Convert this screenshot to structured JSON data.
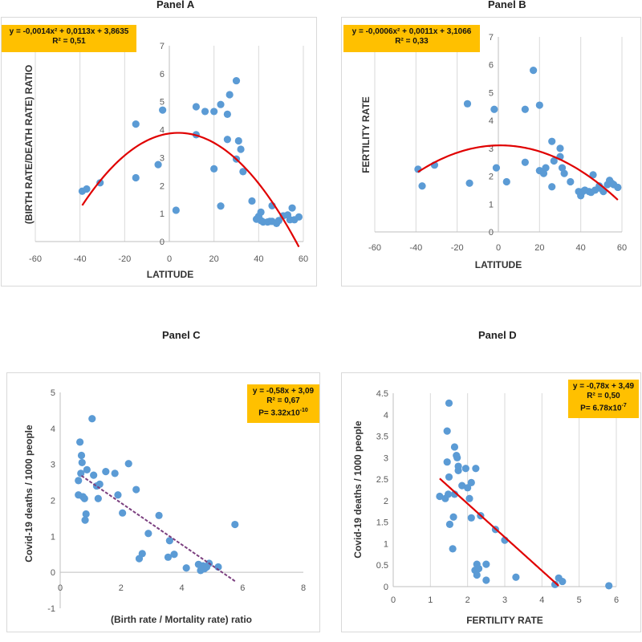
{
  "colors": {
    "point": "#5b9bd5",
    "fit": "#e00000",
    "fit_dashed": "#7b3f7f",
    "equation_box": "#ffc000",
    "grid": "#d9d9d9"
  },
  "panels": {
    "A": {
      "title": "Panel A",
      "equation": "y = -0,0014x² + 0,0113x + 3,8635",
      "r2": "R² = 0,51",
      "xlabel": "LATITUDE",
      "ylabel": "(BIRTH RATE/DEATH RATE) RATIO"
    },
    "B": {
      "title": "Panel B",
      "equation": "y = -0,0006x² + 0,0011x + 3,1066",
      "r2": "R² = 0,33",
      "xlabel": "LATITUDE",
      "ylabel": "FERTILITY RATE"
    },
    "C": {
      "title": "Panel C",
      "equation": "y = -0,58x + 3,09",
      "r2": "R² = 0,67",
      "p": "P= 3.32x10",
      "p_exp": "-10",
      "xlabel": "(Birth rate / Mortality rate) ratio",
      "ylabel": "Covid-19 deaths / 1000 people"
    },
    "D": {
      "title": "Panel D",
      "equation": "y = -0,78x + 3,49",
      "r2": "R² = 0,50",
      "p": "P= 6.78x10",
      "p_exp": "-7",
      "xlabel": "FERTILITY RATE",
      "ylabel": "Covid-19 deaths / 1000 people"
    }
  },
  "chart_data": [
    {
      "type": "scatter",
      "panel": "A",
      "title": "Panel A",
      "xlabel": "LATITUDE",
      "ylabel": "(BIRTH RATE/DEATH RATE) RATIO",
      "xlim": [
        -60,
        60
      ],
      "ylim": [
        0,
        7
      ],
      "xticks": [
        -60,
        -40,
        -20,
        0,
        20,
        40,
        60
      ],
      "yticks": [
        0,
        1,
        2,
        3,
        4,
        5,
        6,
        7
      ],
      "grid": "vertical",
      "fit": {
        "kind": "quadratic",
        "a": -0.0014,
        "b": 0.0113,
        "c": 3.8635,
        "xrange": [
          -39,
          58
        ]
      },
      "points": [
        [
          -39,
          1.8
        ],
        [
          -37,
          1.88
        ],
        [
          -31,
          2.1
        ],
        [
          -15,
          4.2
        ],
        [
          -15,
          2.28
        ],
        [
          -5,
          2.75
        ],
        [
          -3,
          4.7
        ],
        [
          3,
          1.12
        ],
        [
          12,
          4.82
        ],
        [
          12,
          3.82
        ],
        [
          16,
          4.65
        ],
        [
          20,
          4.65
        ],
        [
          20,
          2.6
        ],
        [
          23,
          1.27
        ],
        [
          23,
          4.9
        ],
        [
          26,
          3.65
        ],
        [
          26,
          4.55
        ],
        [
          27,
          5.25
        ],
        [
          30,
          5.75
        ],
        [
          30,
          2.95
        ],
        [
          31,
          3.6
        ],
        [
          32,
          3.3
        ],
        [
          33,
          2.5
        ],
        [
          37,
          1.45
        ],
        [
          39,
          0.8
        ],
        [
          40,
          0.9
        ],
        [
          41,
          0.75
        ],
        [
          41,
          1.05
        ],
        [
          42,
          0.7
        ],
        [
          44,
          0.7
        ],
        [
          45,
          0.72
        ],
        [
          46,
          0.72
        ],
        [
          46,
          1.28
        ],
        [
          48,
          0.65
        ],
        [
          49,
          0.75
        ],
        [
          51,
          0.92
        ],
        [
          53,
          0.95
        ],
        [
          54,
          0.78
        ],
        [
          55,
          1.2
        ],
        [
          56,
          0.78
        ],
        [
          58,
          0.88
        ]
      ]
    },
    {
      "type": "scatter",
      "panel": "B",
      "title": "Panel B",
      "xlabel": "LATITUDE",
      "ylabel": "FERTILITY RATE",
      "xlim": [
        -60,
        60
      ],
      "ylim": [
        0,
        7
      ],
      "xticks": [
        -60,
        -40,
        -20,
        0,
        20,
        40,
        60
      ],
      "yticks": [
        0,
        1,
        2,
        3,
        4,
        5,
        6,
        7
      ],
      "grid": "vertical",
      "fit": {
        "kind": "quadratic",
        "a": -0.0006,
        "b": 0.0011,
        "c": 3.1066,
        "xrange": [
          -39,
          58
        ]
      },
      "points": [
        [
          -39,
          2.25
        ],
        [
          -37,
          1.65
        ],
        [
          -31,
          2.4
        ],
        [
          -15,
          4.6
        ],
        [
          -14,
          1.75
        ],
        [
          -2,
          4.4
        ],
        [
          -1,
          2.3
        ],
        [
          4,
          1.8
        ],
        [
          13,
          4.4
        ],
        [
          13,
          2.5
        ],
        [
          17,
          5.8
        ],
        [
          20,
          2.2
        ],
        [
          20,
          4.55
        ],
        [
          22,
          2.1
        ],
        [
          23,
          2.3
        ],
        [
          26,
          1.62
        ],
        [
          26,
          3.25
        ],
        [
          27,
          2.55
        ],
        [
          30,
          3.0
        ],
        [
          30,
          2.7
        ],
        [
          31,
          2.3
        ],
        [
          32,
          2.1
        ],
        [
          35,
          1.8
        ],
        [
          39,
          1.45
        ],
        [
          40,
          1.3
        ],
        [
          41,
          1.45
        ],
        [
          42,
          1.5
        ],
        [
          44,
          1.45
        ],
        [
          45,
          1.42
        ],
        [
          46,
          2.05
        ],
        [
          47,
          1.5
        ],
        [
          49,
          1.65
        ],
        [
          50,
          1.55
        ],
        [
          51,
          1.45
        ],
        [
          53,
          1.7
        ],
        [
          54,
          1.85
        ],
        [
          55,
          1.75
        ],
        [
          56,
          1.7
        ],
        [
          58,
          1.6
        ]
      ]
    },
    {
      "type": "scatter",
      "panel": "C",
      "title": "Panel C",
      "xlabel": "(Birth rate / Mortality rate) ratio",
      "ylabel": "Covid-19 deaths / 1000 people",
      "xlim": [
        0,
        8
      ],
      "ylim": [
        -1,
        5
      ],
      "xticks": [
        0,
        2,
        4,
        6,
        8
      ],
      "yticks": [
        -1,
        0,
        1,
        2,
        3,
        4,
        5
      ],
      "grid": "none",
      "fit": {
        "kind": "linear",
        "m": -0.58,
        "b": 3.09,
        "xrange": [
          0.7,
          5.75
        ],
        "style": "dashed"
      },
      "points": [
        [
          0.6,
          2.55
        ],
        [
          0.6,
          2.15
        ],
        [
          0.65,
          3.62
        ],
        [
          0.68,
          2.75
        ],
        [
          0.7,
          3.25
        ],
        [
          0.72,
          3.05
        ],
        [
          0.75,
          2.1
        ],
        [
          0.8,
          2.05
        ],
        [
          0.82,
          1.45
        ],
        [
          0.85,
          1.62
        ],
        [
          0.88,
          2.85
        ],
        [
          1.05,
          4.27
        ],
        [
          1.1,
          2.7
        ],
        [
          1.2,
          2.4
        ],
        [
          1.25,
          2.05
        ],
        [
          1.3,
          2.45
        ],
        [
          1.5,
          2.8
        ],
        [
          1.8,
          2.75
        ],
        [
          1.9,
          2.15
        ],
        [
          2.05,
          1.65
        ],
        [
          2.25,
          3.02
        ],
        [
          2.5,
          2.3
        ],
        [
          2.6,
          0.38
        ],
        [
          2.7,
          0.52
        ],
        [
          2.9,
          1.08
        ],
        [
          3.25,
          1.58
        ],
        [
          3.55,
          0.42
        ],
        [
          3.6,
          0.88
        ],
        [
          3.75,
          0.5
        ],
        [
          4.15,
          0.12
        ],
        [
          4.55,
          0.22
        ],
        [
          4.62,
          0.05
        ],
        [
          4.7,
          0.18
        ],
        [
          4.75,
          0.1
        ],
        [
          4.82,
          0.15
        ],
        [
          4.9,
          0.25
        ],
        [
          5.2,
          0.15
        ],
        [
          5.75,
          1.33
        ]
      ]
    },
    {
      "type": "scatter",
      "panel": "D",
      "title": "Panel D",
      "xlabel": "FERTILITY RATE",
      "ylabel": "Covid-19 deaths / 1000 people",
      "xlim": [
        0,
        6
      ],
      "ylim": [
        0,
        4.5
      ],
      "xticks": [
        0,
        1,
        2,
        3,
        4,
        5,
        6
      ],
      "yticks": [
        0,
        0.5,
        1,
        1.5,
        2,
        2.5,
        3,
        3.5,
        4,
        4.5
      ],
      "grid": "vertical",
      "fit": {
        "kind": "linear",
        "m": -0.78,
        "b": 3.49,
        "xrange": [
          1.25,
          4.45
        ],
        "style": "solid"
      },
      "points": [
        [
          1.25,
          2.1
        ],
        [
          1.4,
          2.05
        ],
        [
          1.45,
          3.62
        ],
        [
          1.45,
          2.9
        ],
        [
          1.48,
          2.15
        ],
        [
          1.5,
          4.27
        ],
        [
          1.5,
          2.55
        ],
        [
          1.52,
          1.45
        ],
        [
          1.6,
          0.88
        ],
        [
          1.62,
          1.62
        ],
        [
          1.65,
          2.15
        ],
        [
          1.65,
          3.25
        ],
        [
          1.7,
          3.05
        ],
        [
          1.72,
          3.0
        ],
        [
          1.75,
          2.7
        ],
        [
          1.75,
          2.8
        ],
        [
          1.85,
          2.35
        ],
        [
          1.95,
          2.75
        ],
        [
          2.0,
          2.3
        ],
        [
          2.05,
          2.05
        ],
        [
          2.1,
          1.6
        ],
        [
          2.1,
          2.42
        ],
        [
          2.2,
          0.38
        ],
        [
          2.22,
          2.75
        ],
        [
          2.25,
          0.27
        ],
        [
          2.25,
          0.52
        ],
        [
          2.3,
          0.42
        ],
        [
          2.35,
          1.65
        ],
        [
          2.5,
          0.52
        ],
        [
          2.5,
          0.15
        ],
        [
          2.75,
          1.33
        ],
        [
          3.0,
          1.08
        ],
        [
          3.3,
          0.22
        ],
        [
          4.35,
          0.05
        ],
        [
          4.45,
          0.2
        ],
        [
          4.55,
          0.12
        ],
        [
          5.8,
          0.02
        ]
      ]
    }
  ]
}
